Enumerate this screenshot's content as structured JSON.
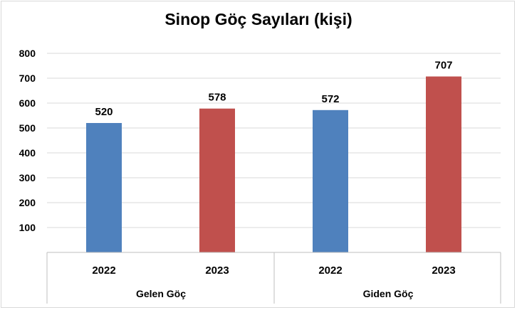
{
  "chart_data": {
    "type": "bar",
    "title": "Sinop Göç Sayıları (kişi)",
    "ylim": [
      0,
      800
    ],
    "yticks": [
      100,
      200,
      300,
      400,
      500,
      600,
      700,
      800
    ],
    "grid": true,
    "bars": [
      {
        "group": "Gelen Göç",
        "year": "2022",
        "value": 520,
        "color": "#4f81bd"
      },
      {
        "group": "Gelen Göç",
        "year": "2023",
        "value": 578,
        "color": "#c0504d"
      },
      {
        "group": "Giden Göç",
        "year": "2022",
        "value": 572,
        "color": "#4f81bd"
      },
      {
        "group": "Giden Göç",
        "year": "2023",
        "value": 707,
        "color": "#c0504d"
      }
    ],
    "groups": [
      "Gelen Göç",
      "Giden Göç"
    ]
  }
}
